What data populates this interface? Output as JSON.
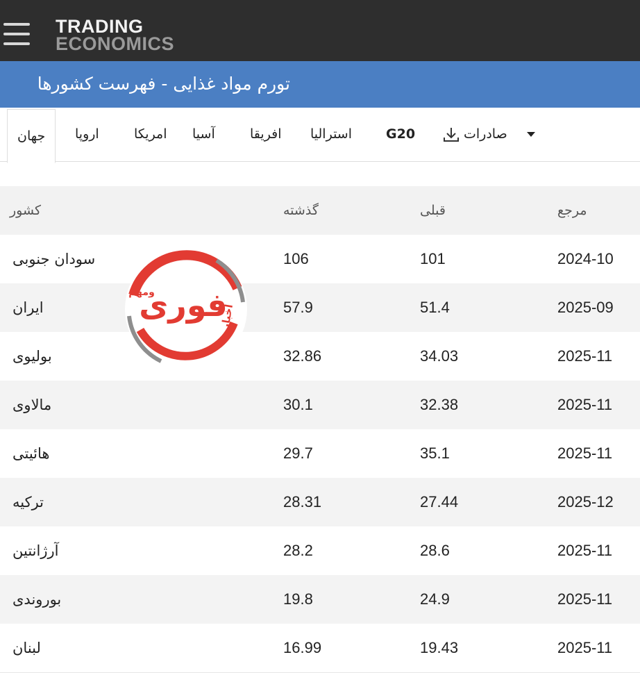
{
  "header": {
    "brand_top": "TRADING",
    "brand_bottom": "ECONOMICS"
  },
  "title": "تورم مواد غذایی - فهرست کشورها",
  "tabs": [
    "جهان",
    "اروپا",
    "امریکا",
    "آسیا",
    "افریقا",
    "استرالیا",
    "G20",
    "صادرات"
  ],
  "table": {
    "columns": [
      "کشور",
      "گذشته",
      "قبلی",
      "مرجع"
    ],
    "rows": [
      [
        "سودان جنوبی",
        "106",
        "101",
        "2024-10"
      ],
      [
        "ایران",
        "57.9",
        "51.4",
        "2025-09"
      ],
      [
        "بولیوی",
        "32.86",
        "34.03",
        "2025-11"
      ],
      [
        "مالاوی",
        "30.1",
        "32.38",
        "2025-11"
      ],
      [
        "هائیتی",
        "29.7",
        "35.1",
        "2025-11"
      ],
      [
        "ترکیه",
        "28.31",
        "27.44",
        "2025-12"
      ],
      [
        "آرژانتین",
        "28.2",
        "28.6",
        "2025-11"
      ],
      [
        "بوروندی",
        "19.8",
        "24.9",
        "2025-11"
      ],
      [
        "لبنان",
        "16.99",
        "19.43",
        "2025-11"
      ]
    ]
  },
  "watermark": {
    "main": "فوری",
    "left": "اخبار",
    "top": "ومهم"
  }
}
